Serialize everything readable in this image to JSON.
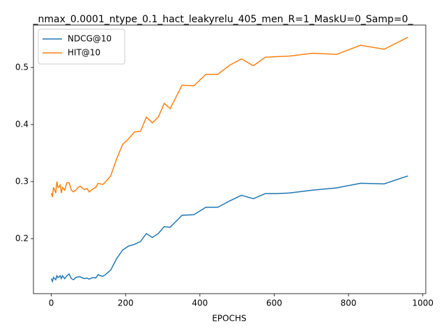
{
  "chart_data": {
    "type": "line",
    "title": "_nmax_0.0001_ntype_0.1_hact_leakyrelu_405_men_R=1_MaskU=0_Samp=0_",
    "x_label": "EPOCHS",
    "x": [
      0,
      3,
      6,
      9,
      12,
      15,
      18,
      21,
      24,
      27,
      30,
      36,
      42,
      48,
      54,
      60,
      66,
      72,
      78,
      84,
      90,
      96,
      102,
      108,
      114,
      120,
      126,
      132,
      138,
      144,
      160,
      176,
      192,
      208,
      224,
      240,
      256,
      272,
      288,
      304,
      320,
      352,
      384,
      416,
      448,
      480,
      512,
      544,
      576,
      608,
      640,
      704,
      768,
      832,
      896,
      960
    ],
    "series": [
      {
        "name": "NDCG@10",
        "color": "#1f77b4",
        "values": [
          0.13,
          0.125,
          0.132,
          0.13,
          0.128,
          0.135,
          0.132,
          0.133,
          0.135,
          0.13,
          0.135,
          0.13,
          0.135,
          0.138,
          0.13,
          0.128,
          0.132,
          0.133,
          0.133,
          0.131,
          0.13,
          0.131,
          0.129,
          0.131,
          0.132,
          0.131,
          0.137,
          0.135,
          0.134,
          0.136,
          0.145,
          0.165,
          0.18,
          0.187,
          0.19,
          0.195,
          0.209,
          0.202,
          0.209,
          0.221,
          0.22,
          0.241,
          0.242,
          0.255,
          0.255,
          0.266,
          0.276,
          0.27,
          0.279,
          0.279,
          0.28,
          0.285,
          0.289,
          0.297,
          0.296,
          0.31
        ]
      },
      {
        "name": "HIT@10",
        "color": "#ff7f0e",
        "values": [
          0.28,
          0.273,
          0.29,
          0.285,
          0.28,
          0.3,
          0.29,
          0.29,
          0.295,
          0.28,
          0.29,
          0.285,
          0.298,
          0.298,
          0.285,
          0.282,
          0.285,
          0.29,
          0.292,
          0.288,
          0.286,
          0.288,
          0.282,
          0.285,
          0.288,
          0.29,
          0.297,
          0.296,
          0.295,
          0.298,
          0.31,
          0.34,
          0.365,
          0.375,
          0.387,
          0.388,
          0.413,
          0.403,
          0.413,
          0.437,
          0.428,
          0.469,
          0.468,
          0.488,
          0.488,
          0.504,
          0.515,
          0.503,
          0.518,
          0.519,
          0.52,
          0.525,
          0.523,
          0.539,
          0.532,
          0.553
        ]
      }
    ],
    "xlim": [
      -48,
      1008
    ],
    "xticks": [
      0,
      200,
      400,
      600,
      800,
      1000
    ],
    "ylim": [
      0.1036,
      0.5744
    ],
    "yticks": [
      0.2,
      0.3,
      0.4,
      0.5
    ],
    "legend": "upper left"
  }
}
